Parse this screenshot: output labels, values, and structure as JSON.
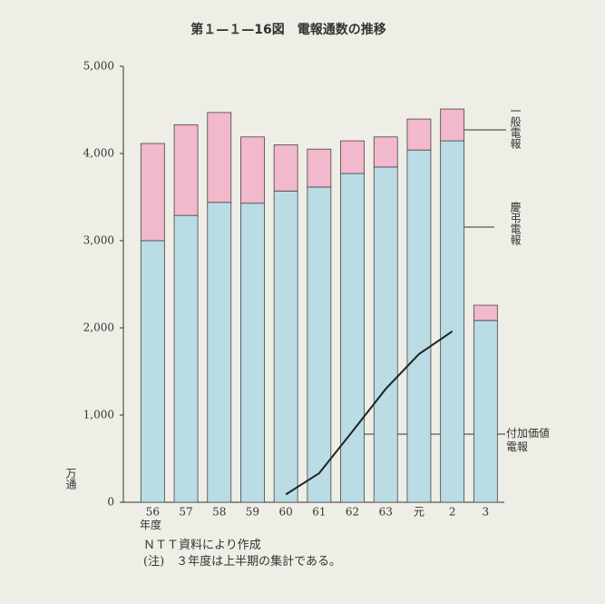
{
  "chart_data": {
    "type": "bar",
    "stacked": true,
    "title": "第１—１—16図　電報通数の推移",
    "y_label": "万通",
    "x_label": "年度",
    "categories": [
      "56",
      "57",
      "58",
      "59",
      "60",
      "61",
      "62",
      "63",
      "元",
      "2",
      "3"
    ],
    "series": [
      {
        "name": "慶弔電報",
        "type": "bar",
        "color": "#b9dce5",
        "values": [
          3000,
          3290,
          3440,
          3430,
          3570,
          3615,
          3770,
          3845,
          4040,
          4145,
          2085
        ]
      },
      {
        "name": "一般電報",
        "type": "bar",
        "color": "#f2b8cc",
        "values": [
          1115,
          1040,
          1030,
          760,
          530,
          435,
          375,
          345,
          355,
          365,
          175
        ]
      },
      {
        "name": "付加価値電報",
        "type": "line",
        "color": "#222222",
        "values": [
          null,
          null,
          null,
          null,
          90,
          333,
          813,
          1300,
          1700,
          1960,
          null
        ]
      }
    ],
    "ylim": [
      0,
      5000
    ],
    "yticks": [
      0,
      {
        "value": 1000,
        "label": "1,000"
      },
      {
        "value": 2000,
        "label": "2,000"
      },
      {
        "value": 3000,
        "label": "3,000"
      },
      {
        "value": 4000,
        "label": "4,000"
      },
      {
        "value": 5000,
        "label": "5,000"
      }
    ],
    "source": "ＮＴＴ資料により作成",
    "note": "(注)　３年度は上半期の集計である。"
  }
}
